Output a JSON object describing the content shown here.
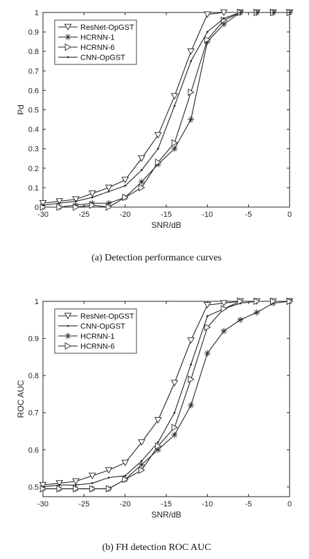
{
  "chart_data": [
    {
      "type": "line",
      "caption": "(a) Detection performance curves",
      "xlabel": "SNR/dB",
      "ylabel": "Pd",
      "xlim": [
        -30,
        0
      ],
      "ylim": [
        0,
        1
      ],
      "xticks": [
        -30,
        -25,
        -20,
        -15,
        -10,
        -5,
        0
      ],
      "yticks": [
        0,
        0.1,
        0.2,
        0.3,
        0.4,
        0.5,
        0.6,
        0.7,
        0.8,
        0.9,
        1
      ],
      "ytick_labels": [
        "0",
        "0.1",
        "0.2",
        "0.3",
        "0.4",
        "0.5",
        "0.6",
        "0.7",
        "0.8",
        "0.9",
        "1"
      ],
      "legend_position": "top-left",
      "series": [
        {
          "name": "ResNet-OpGST",
          "marker": "triangle-down",
          "x": [
            -30,
            -28,
            -26,
            -24,
            -22,
            -20,
            -18,
            -16,
            -14,
            -12,
            -10,
            -8,
            -6,
            -4,
            -2,
            0
          ],
          "y": [
            0.02,
            0.03,
            0.04,
            0.07,
            0.1,
            0.14,
            0.25,
            0.37,
            0.57,
            0.8,
            0.99,
            1.0,
            1.0,
            1.0,
            1.0,
            1.0
          ]
        },
        {
          "name": "HCRNN-1",
          "marker": "star",
          "x": [
            -30,
            -28,
            -26,
            -24,
            -22,
            -20,
            -18,
            -16,
            -14,
            -12,
            -10,
            -8,
            -6,
            -4,
            -2,
            0
          ],
          "y": [
            0.0,
            0.0,
            0.01,
            0.02,
            0.02,
            0.05,
            0.13,
            0.22,
            0.3,
            0.45,
            0.85,
            0.94,
            1.0,
            1.0,
            1.0,
            1.0
          ]
        },
        {
          "name": "HCRNN-6",
          "marker": "triangle-right",
          "x": [
            -30,
            -28,
            -26,
            -24,
            -22,
            -20,
            -18,
            -16,
            -14,
            -12,
            -10,
            -8,
            -6,
            -4,
            -2,
            0
          ],
          "y": [
            0.0,
            0.0,
            0.0,
            0.01,
            0.0,
            0.05,
            0.1,
            0.23,
            0.33,
            0.59,
            0.86,
            0.96,
            1.0,
            1.0,
            1.0,
            1.0
          ]
        },
        {
          "name": "CNN-OpGST",
          "marker": "dot",
          "x": [
            -30,
            -28,
            -26,
            -24,
            -22,
            -20,
            -18,
            -16,
            -14,
            -12,
            -10,
            -8,
            -6,
            -4,
            -2,
            0
          ],
          "y": [
            0.01,
            0.02,
            0.03,
            0.05,
            0.08,
            0.11,
            0.19,
            0.3,
            0.52,
            0.75,
            0.9,
            0.97,
            1.0,
            1.0,
            1.0,
            1.0
          ]
        }
      ]
    },
    {
      "type": "line",
      "caption": "(b) FH detection ROC AUC",
      "xlabel": "SNR/dB",
      "ylabel": "ROC AUC",
      "xlim": [
        -30,
        0
      ],
      "ylim": [
        0.4737,
        1
      ],
      "xticks": [
        -30,
        -25,
        -20,
        -15,
        -10,
        -5,
        0
      ],
      "yticks": [
        0.5,
        0.6,
        0.7,
        0.8,
        0.9,
        1
      ],
      "ytick_labels": [
        "0.5",
        "0.6",
        "0.7",
        "0.8",
        "0.9",
        "1"
      ],
      "legend_position": "top-left",
      "series": [
        {
          "name": "ResNet-OpGST",
          "marker": "triangle-down",
          "x": [
            -30,
            -28,
            -26,
            -24,
            -22,
            -20,
            -18,
            -16,
            -14,
            -12,
            -10,
            -8,
            -6,
            -4,
            -2,
            0
          ],
          "y": [
            0.505,
            0.51,
            0.515,
            0.53,
            0.545,
            0.565,
            0.62,
            0.68,
            0.78,
            0.895,
            0.99,
            0.995,
            1.0,
            1.0,
            1.0,
            1.0
          ]
        },
        {
          "name": "CNN-OpGST",
          "marker": "dot",
          "x": [
            -30,
            -28,
            -26,
            -24,
            -22,
            -20,
            -18,
            -16,
            -14,
            -12,
            -10,
            -8,
            -6,
            -4,
            -2,
            0
          ],
          "y": [
            0.5,
            0.505,
            0.505,
            0.51,
            0.525,
            0.53,
            0.57,
            0.62,
            0.7,
            0.83,
            0.96,
            0.98,
            0.995,
            1.0,
            1.0,
            1.0
          ]
        },
        {
          "name": "HCRNN-1",
          "marker": "star",
          "x": [
            -30,
            -28,
            -26,
            -24,
            -22,
            -20,
            -18,
            -16,
            -14,
            -12,
            -10,
            -8,
            -6,
            -4,
            -2,
            0
          ],
          "y": [
            0.495,
            0.495,
            0.495,
            0.495,
            0.495,
            0.52,
            0.56,
            0.6,
            0.64,
            0.72,
            0.86,
            0.92,
            0.95,
            0.97,
            0.995,
            1.0
          ]
        },
        {
          "name": "HCRNN-6",
          "marker": "triangle-right",
          "x": [
            -30,
            -28,
            -26,
            -24,
            -22,
            -20,
            -18,
            -16,
            -14,
            -12,
            -10,
            -8,
            -6,
            -4,
            -2,
            0
          ],
          "y": [
            0.495,
            0.495,
            0.495,
            0.495,
            0.495,
            0.52,
            0.545,
            0.61,
            0.66,
            0.79,
            0.93,
            0.98,
            1.0,
            1.0,
            1.0,
            1.0
          ]
        }
      ]
    }
  ]
}
